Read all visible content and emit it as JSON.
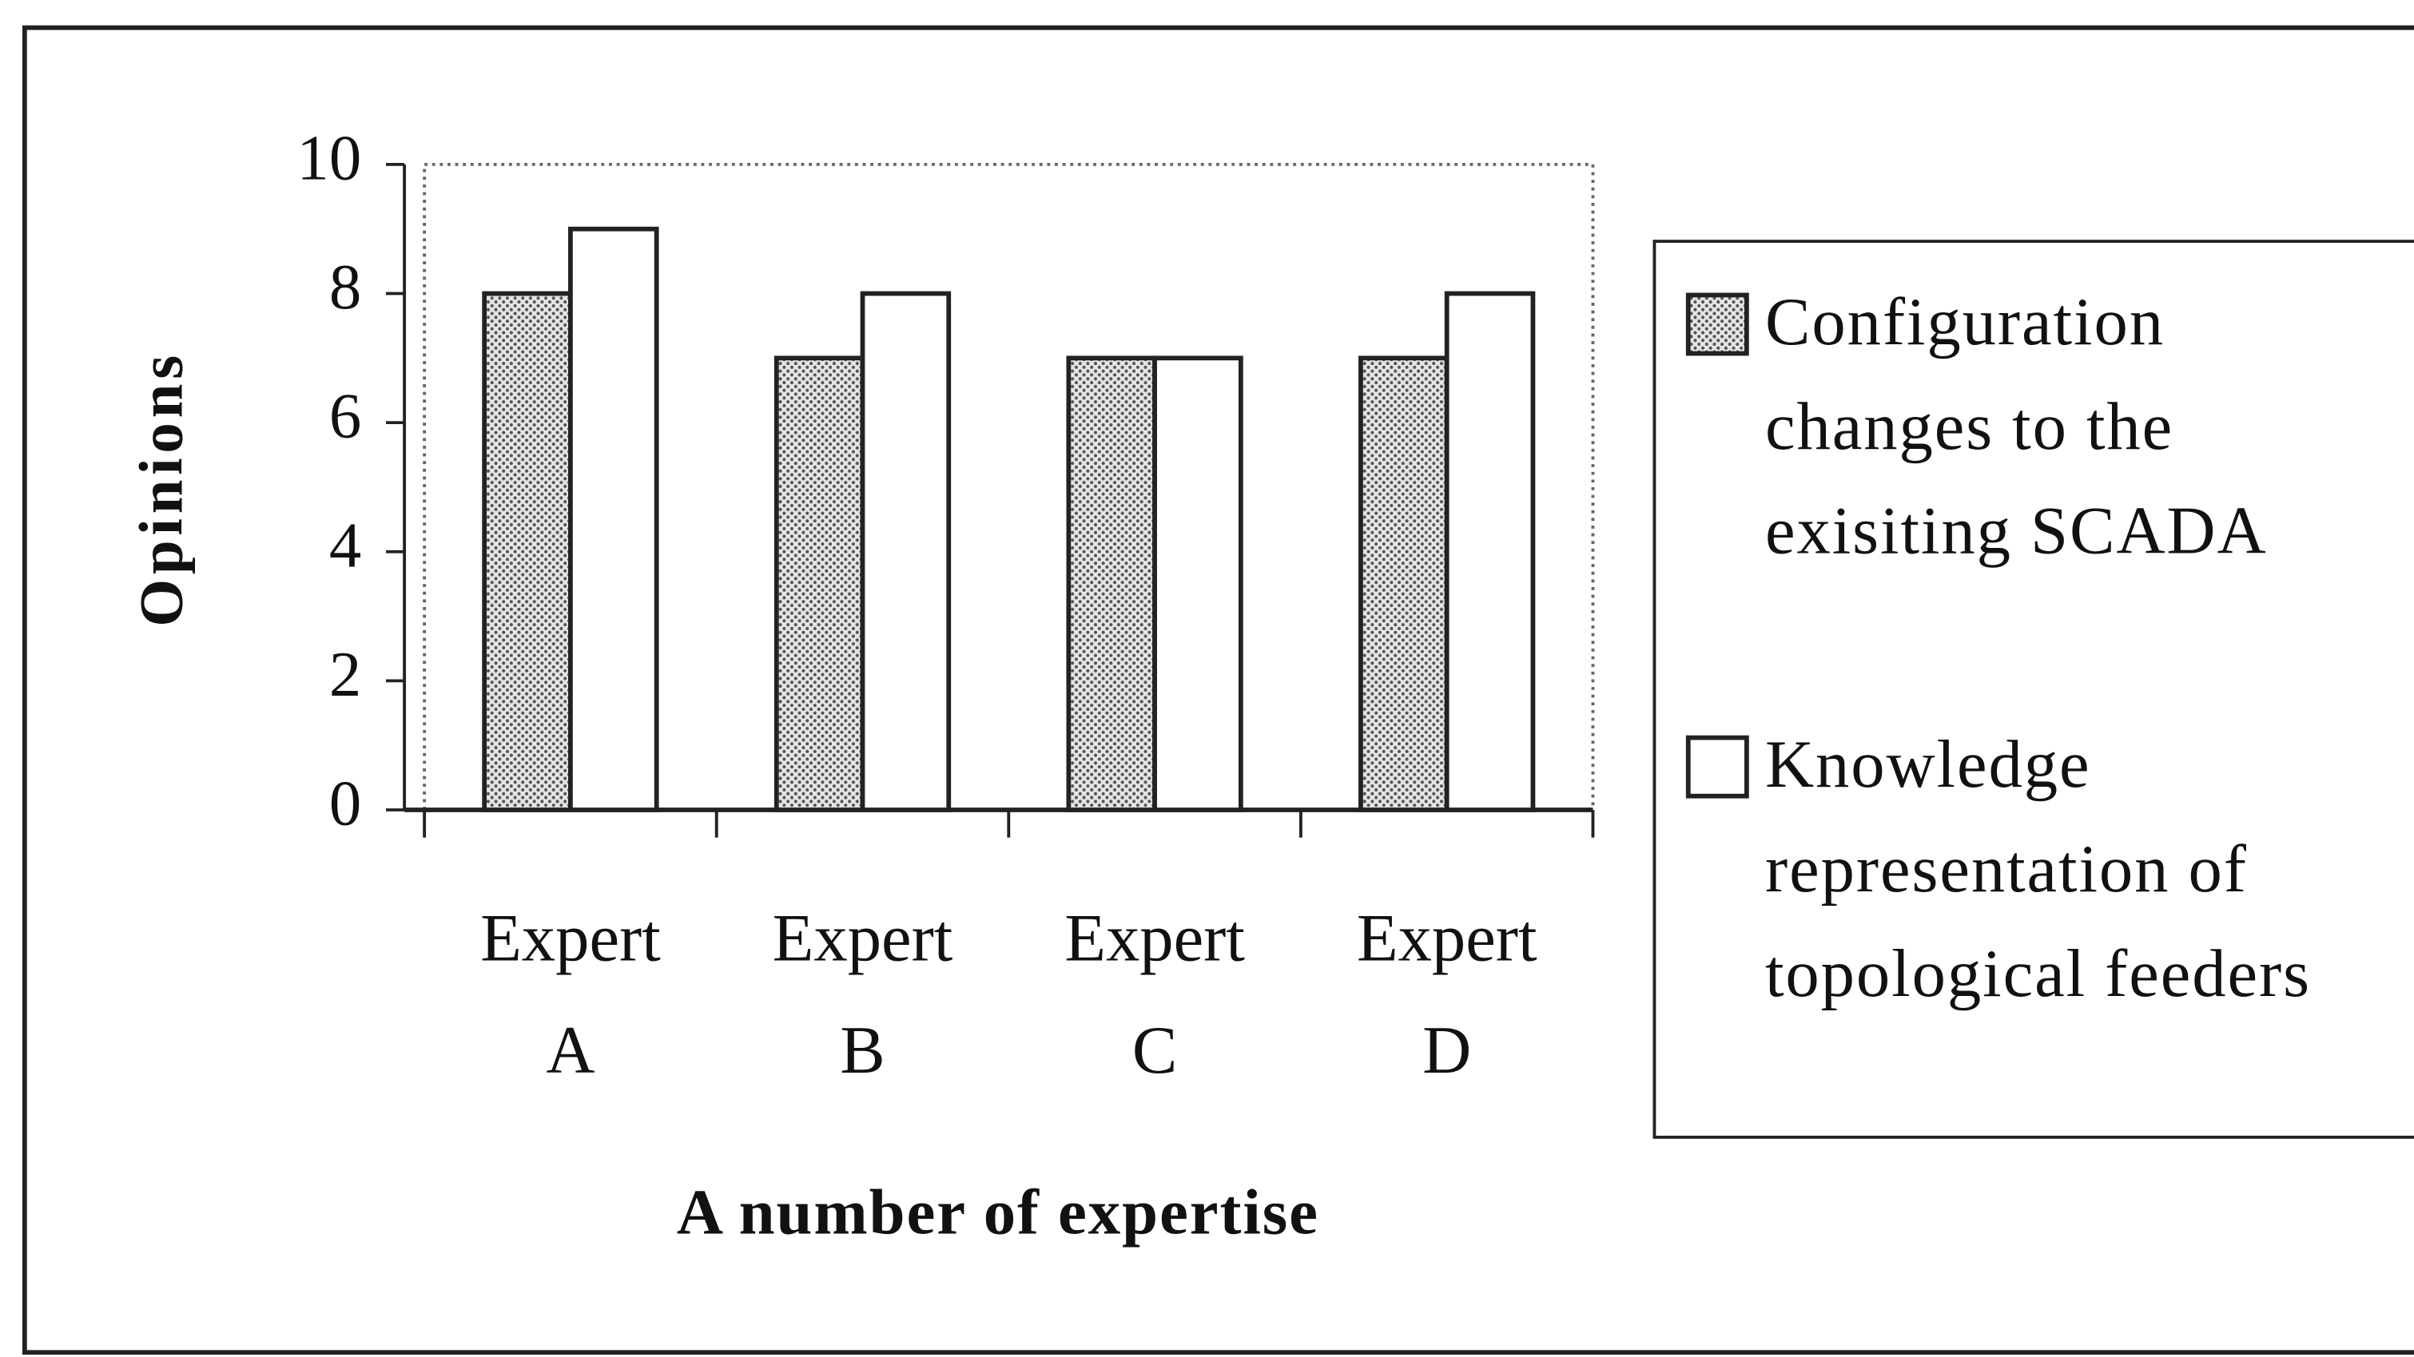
{
  "chart_data": {
    "type": "bar",
    "xlabel": "A number of expertise",
    "ylabel": "Opinions",
    "categories": [
      "Expert A",
      "Expert B",
      "Expert C",
      "Expert D"
    ],
    "series": [
      {
        "name": "Configuration changes to the exisiting SCADA",
        "color": "#bdbdbd",
        "fill_pattern": "dots",
        "values": [
          8,
          7,
          7,
          7
        ]
      },
      {
        "name": "Knowledge representation of topological feeders",
        "color": "#ffffff",
        "values": [
          9,
          8,
          7,
          8
        ]
      }
    ],
    "ylim": [
      0,
      10
    ],
    "yticks": [
      0,
      2,
      4,
      6,
      8,
      10
    ],
    "legend": "right"
  }
}
